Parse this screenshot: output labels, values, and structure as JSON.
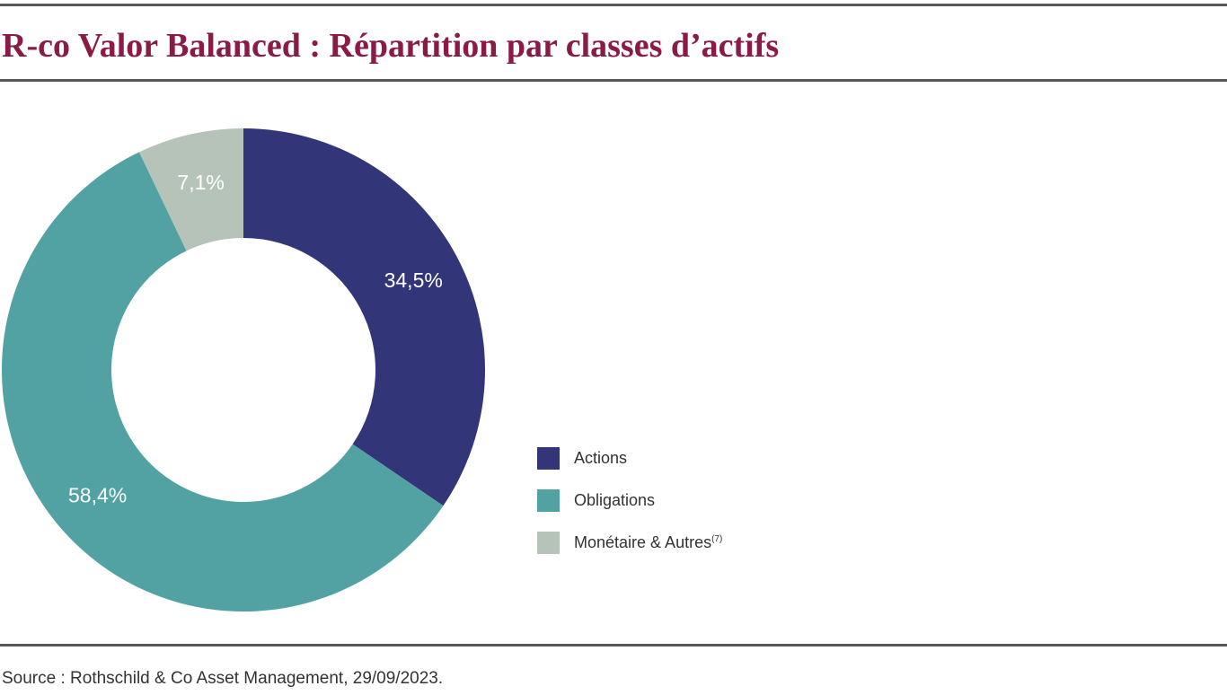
{
  "title": "R-co Valor Balanced : Répartition par classes d’actifs",
  "source": "Source : Rothschild & Co Asset Management, 29/09/2023.",
  "chart_data": {
    "type": "pie",
    "variant": "donut",
    "categories": [
      "Actions",
      "Obligations",
      "Monétaire & Autres"
    ],
    "values": [
      34.5,
      58.4,
      7.1
    ],
    "value_labels": [
      "34,5%",
      "58,4%",
      "7,1%"
    ],
    "colors": [
      "#323577",
      "#52a2a4",
      "#b5c3b9"
    ],
    "legend_position": "right",
    "legend": [
      {
        "label": "Actions",
        "note": ""
      },
      {
        "label": "Obligations",
        "note": ""
      },
      {
        "label": "Monétaire & Autres",
        "note": "(7)"
      }
    ]
  },
  "styles": {
    "title_color": "#8a1b47",
    "rule_color": "#58585a",
    "label_color": "#ffffff",
    "text_color": "#333333"
  }
}
